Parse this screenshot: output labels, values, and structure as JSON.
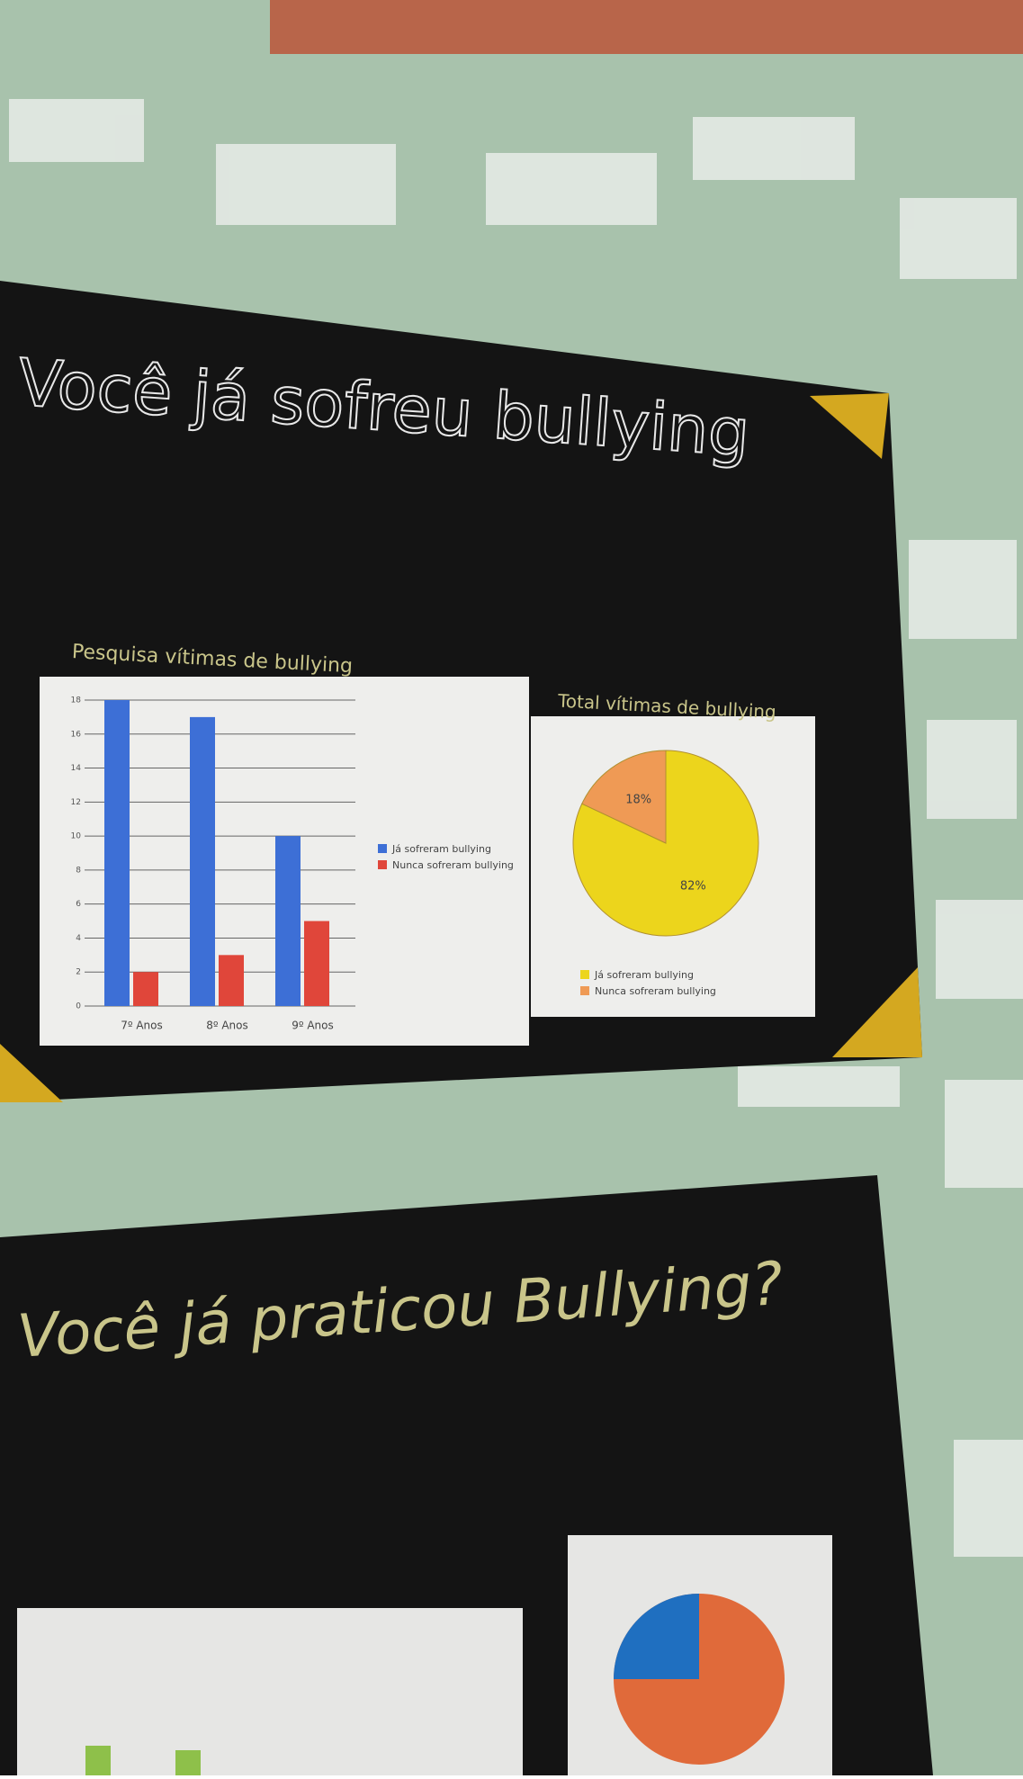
{
  "posters": [
    {
      "title": "Você já sofreu bullying"
    },
    {
      "title": "Você já praticou Bullying?"
    }
  ],
  "chart_data": [
    {
      "type": "bar",
      "title": "Pesquisa vítimas de bullying",
      "categories": [
        "7º Anos",
        "8º Anos",
        "9º Anos"
      ],
      "series": [
        {
          "name": "Já sofreram bullying",
          "color": "#3d6fd6",
          "values": [
            18,
            17,
            10
          ]
        },
        {
          "name": "Nunca sofreram bullying",
          "color": "#e0463a",
          "values": [
            2,
            3,
            5
          ]
        }
      ],
      "ylim": [
        0,
        18
      ],
      "yticks": [
        0,
        2,
        4,
        6,
        8,
        10,
        12,
        14,
        16,
        18
      ],
      "grid": true
    },
    {
      "type": "pie",
      "title": "Total vítimas de bullying",
      "categories": [
        "Já sofreram bullying",
        "Nunca sofreram bullying"
      ],
      "values": [
        82,
        18
      ],
      "value_labels": [
        "82%",
        "18%"
      ],
      "colors": [
        "#ecd51c",
        "#ef9a55"
      ]
    }
  ]
}
